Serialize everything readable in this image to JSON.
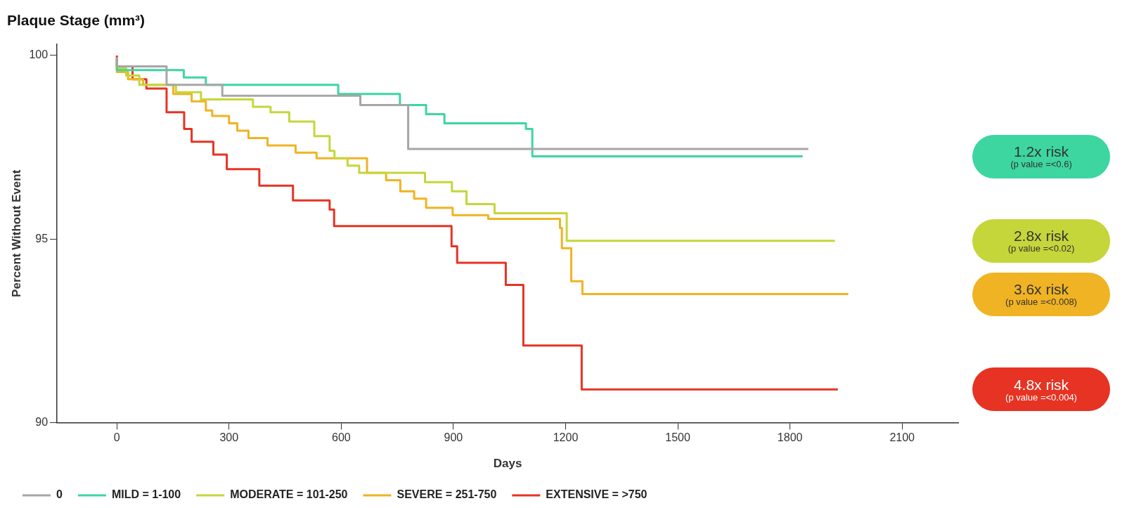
{
  "chart_data": {
    "type": "step",
    "title": "Plaque Stage (mm³)",
    "xlabel": "Days",
    "ylabel": "Percent Without Event",
    "xlim": [
      -160,
      2250
    ],
    "xticks": [
      0,
      300,
      600,
      900,
      1200,
      1500,
      1800,
      2100
    ],
    "ylim": [
      90,
      100.3
    ],
    "yticks": [
      90,
      95,
      100
    ],
    "legend": "bottom",
    "series": [
      {
        "name": "0",
        "color": "#a6a6a6",
        "x": [
          0,
          133,
          282,
          651,
          779,
          1649,
          1849
        ],
        "values": [
          99.95,
          99.7,
          99.2,
          98.9,
          98.65,
          97.45,
          97.45
        ]
      },
      {
        "name": "MILD = 1-100",
        "color": "#3dd6a0",
        "x": [
          0,
          179,
          238,
          592,
          757,
          827,
          876,
          1094,
          1111,
          1633,
          1834
        ],
        "values": [
          99.9,
          99.6,
          99.4,
          99.2,
          98.95,
          98.65,
          98.4,
          98.15,
          98.0,
          97.25,
          97.25
        ]
      },
      {
        "name": "MODERATE = 101-250",
        "color": "#c5d63a",
        "x": [
          0,
          25,
          60,
          158,
          225,
          364,
          411,
          461,
          528,
          569,
          582,
          617,
          648,
          824,
          896,
          935,
          1010,
          1203,
          1465,
          1920
        ],
        "values": [
          99.85,
          99.65,
          99.45,
          99.2,
          99.0,
          98.8,
          98.6,
          98.45,
          98.2,
          97.8,
          97.4,
          97.2,
          97.0,
          96.8,
          96.55,
          96.3,
          95.95,
          95.7,
          94.95,
          94.95
        ]
      },
      {
        "name": "SEVERE = 251-750",
        "color": "#f0b323",
        "x": [
          0,
          30,
          70,
          151,
          200,
          238,
          255,
          300,
          322,
          352,
          403,
          478,
          534,
          669,
          720,
          758,
          795,
          827,
          898,
          993,
          1185,
          1190,
          1215,
          1245,
          1260,
          1956
        ],
        "values": [
          99.85,
          99.55,
          99.35,
          99.2,
          98.95,
          98.75,
          98.5,
          98.35,
          98.15,
          97.95,
          97.75,
          97.55,
          97.35,
          97.2,
          96.8,
          96.6,
          96.3,
          96.1,
          95.85,
          95.65,
          95.55,
          95.3,
          94.75,
          93.85,
          93.5,
          93.5
        ]
      },
      {
        "name": "EXTENSIVE = >750",
        "color": "#e63323",
        "x": [
          0,
          42,
          79,
          133,
          180,
          200,
          258,
          294,
          381,
          471,
          569,
          581,
          895,
          910,
          1040,
          1087,
          1243,
          1386,
          1928
        ],
        "values": [
          100,
          99.7,
          99.35,
          99.1,
          98.45,
          98.0,
          97.65,
          97.3,
          96.9,
          96.45,
          96.05,
          95.8,
          95.35,
          94.8,
          94.35,
          93.75,
          92.1,
          90.9,
          90.9
        ]
      }
    ],
    "annotations": [
      "1.2x risk\n(p value =<0.6)",
      "2.8x risk\n(p value =<0.02)",
      "3.6x risk\n(p value =<0.008)",
      "4.8x risk\n(p value =<0.004)"
    ]
  }
}
